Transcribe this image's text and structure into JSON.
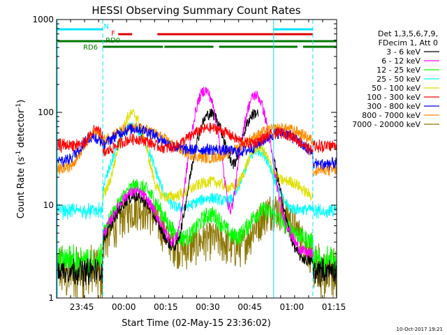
{
  "chart_data": {
    "type": "line",
    "title": "HESSI Observing Summary Count Rates",
    "xlabel": "Start Time (02-May-15 23:36:02)",
    "ylabel_main": "Count Rate (s",
    "ylabel_sup1": "-1",
    "ylabel_mid": " detector",
    "ylabel_sup2": "-1",
    "ylabel_end": ")",
    "yscale": "log",
    "ylim": [
      1,
      1000
    ],
    "xlim_minutes_from_2336": [
      0,
      100
    ],
    "y_ticks": [
      {
        "value": 1,
        "label": "1"
      },
      {
        "value": 10,
        "label": "10"
      },
      {
        "value": 100,
        "label": "100"
      },
      {
        "value": 1000,
        "label": "1000"
      }
    ],
    "x_ticks": [
      {
        "value": 9,
        "label": "23:45"
      },
      {
        "value": 24,
        "label": "00:00"
      },
      {
        "value": 39,
        "label": "00:15"
      },
      {
        "value": 54,
        "label": "00:30"
      },
      {
        "value": 69,
        "label": "00:45"
      },
      {
        "value": 84,
        "label": "01:00"
      },
      {
        "value": 99,
        "label": "01:15"
      }
    ],
    "legend_header": [
      "Det 1,3,5,6,7,9,",
      "FDecim 1, Att 0"
    ],
    "series": [
      {
        "name": "3 - 6 keV",
        "color": "#000000"
      },
      {
        "name": "6 - 12 keV",
        "color": "#ff00ff"
      },
      {
        "name": "12 - 25 keV",
        "color": "#00ff00"
      },
      {
        "name": "25 - 50 keV",
        "color": "#00ffff"
      },
      {
        "name": "50 - 100 keV",
        "color": "#e0e000"
      },
      {
        "name": "100 - 300 keV",
        "color": "#ff0000"
      },
      {
        "name": "300 - 800 keV",
        "color": "#0000ff"
      },
      {
        "name": "800 - 7000 keV",
        "color": "#ff8c00"
      },
      {
        "name": "7000 - 20000 keV",
        "color": "#8b7500"
      }
    ],
    "flags": [
      {
        "label": "N",
        "color": "#00e5ff",
        "segments": [
          [
            0,
            16.5
          ],
          [
            77.5,
            91.5
          ]
        ]
      },
      {
        "label": "F",
        "color": "#e00000",
        "segments": [
          [
            22,
            27
          ],
          [
            36,
            91.5
          ]
        ]
      },
      {
        "label": "RD0",
        "color": "#007700",
        "segments": [
          [
            0,
            100
          ]
        ]
      },
      {
        "label": "RD6",
        "color": "#007700",
        "segments": [
          [
            16.5,
            38
          ],
          [
            38.5,
            56
          ],
          [
            58,
            86
          ],
          [
            88,
            100
          ]
        ]
      }
    ],
    "vertical_markers": {
      "dashed_cyan": [
        16.5,
        91.5
      ],
      "solid_cyan": [
        0,
        77.5
      ]
    },
    "timestamp": "10-Oct-2017 19:21"
  }
}
